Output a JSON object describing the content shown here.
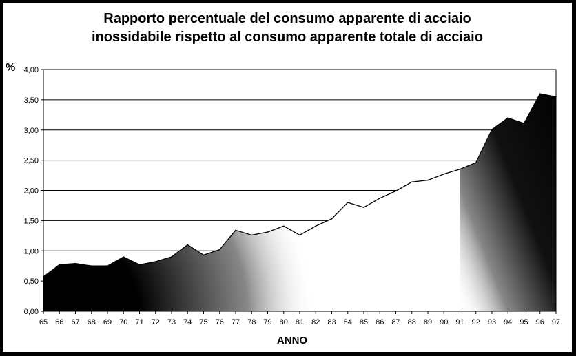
{
  "chart_data": {
    "type": "area",
    "title_line1": "Rapporto percentuale del consumo apparente di acciaio",
    "title_line2": "inossidabile rispetto al consumo apparente totale di acciaio",
    "xlabel": "ANNO",
    "ylabel": "%",
    "ylim": [
      0,
      4
    ],
    "yticks": [
      "0,00",
      "0,50",
      "1,00",
      "1,50",
      "2,00",
      "2,50",
      "3,00",
      "3,50",
      "4,00"
    ],
    "categories": [
      "65",
      "66",
      "67",
      "68",
      "69",
      "70",
      "71",
      "72",
      "73",
      "74",
      "75",
      "76",
      "77",
      "78",
      "79",
      "80",
      "81",
      "82",
      "83",
      "84",
      "85",
      "86",
      "87",
      "88",
      "89",
      "90",
      "91",
      "92",
      "93",
      "94",
      "95",
      "96",
      "97"
    ],
    "values": [
      0.57,
      0.77,
      0.79,
      0.75,
      0.75,
      0.9,
      0.77,
      0.82,
      0.9,
      1.1,
      0.93,
      1.02,
      1.34,
      1.26,
      1.31,
      1.41,
      1.26,
      1.41,
      1.53,
      1.8,
      1.72,
      1.87,
      1.99,
      2.14,
      2.17,
      2.27,
      2.35,
      2.46,
      3.01,
      3.2,
      3.11,
      3.6,
      3.55
    ],
    "grid": true,
    "legend": "none",
    "colors": {
      "fill_dark": "#000000",
      "line": "#000000",
      "grid": "#000000",
      "background": "#ffffff"
    }
  }
}
